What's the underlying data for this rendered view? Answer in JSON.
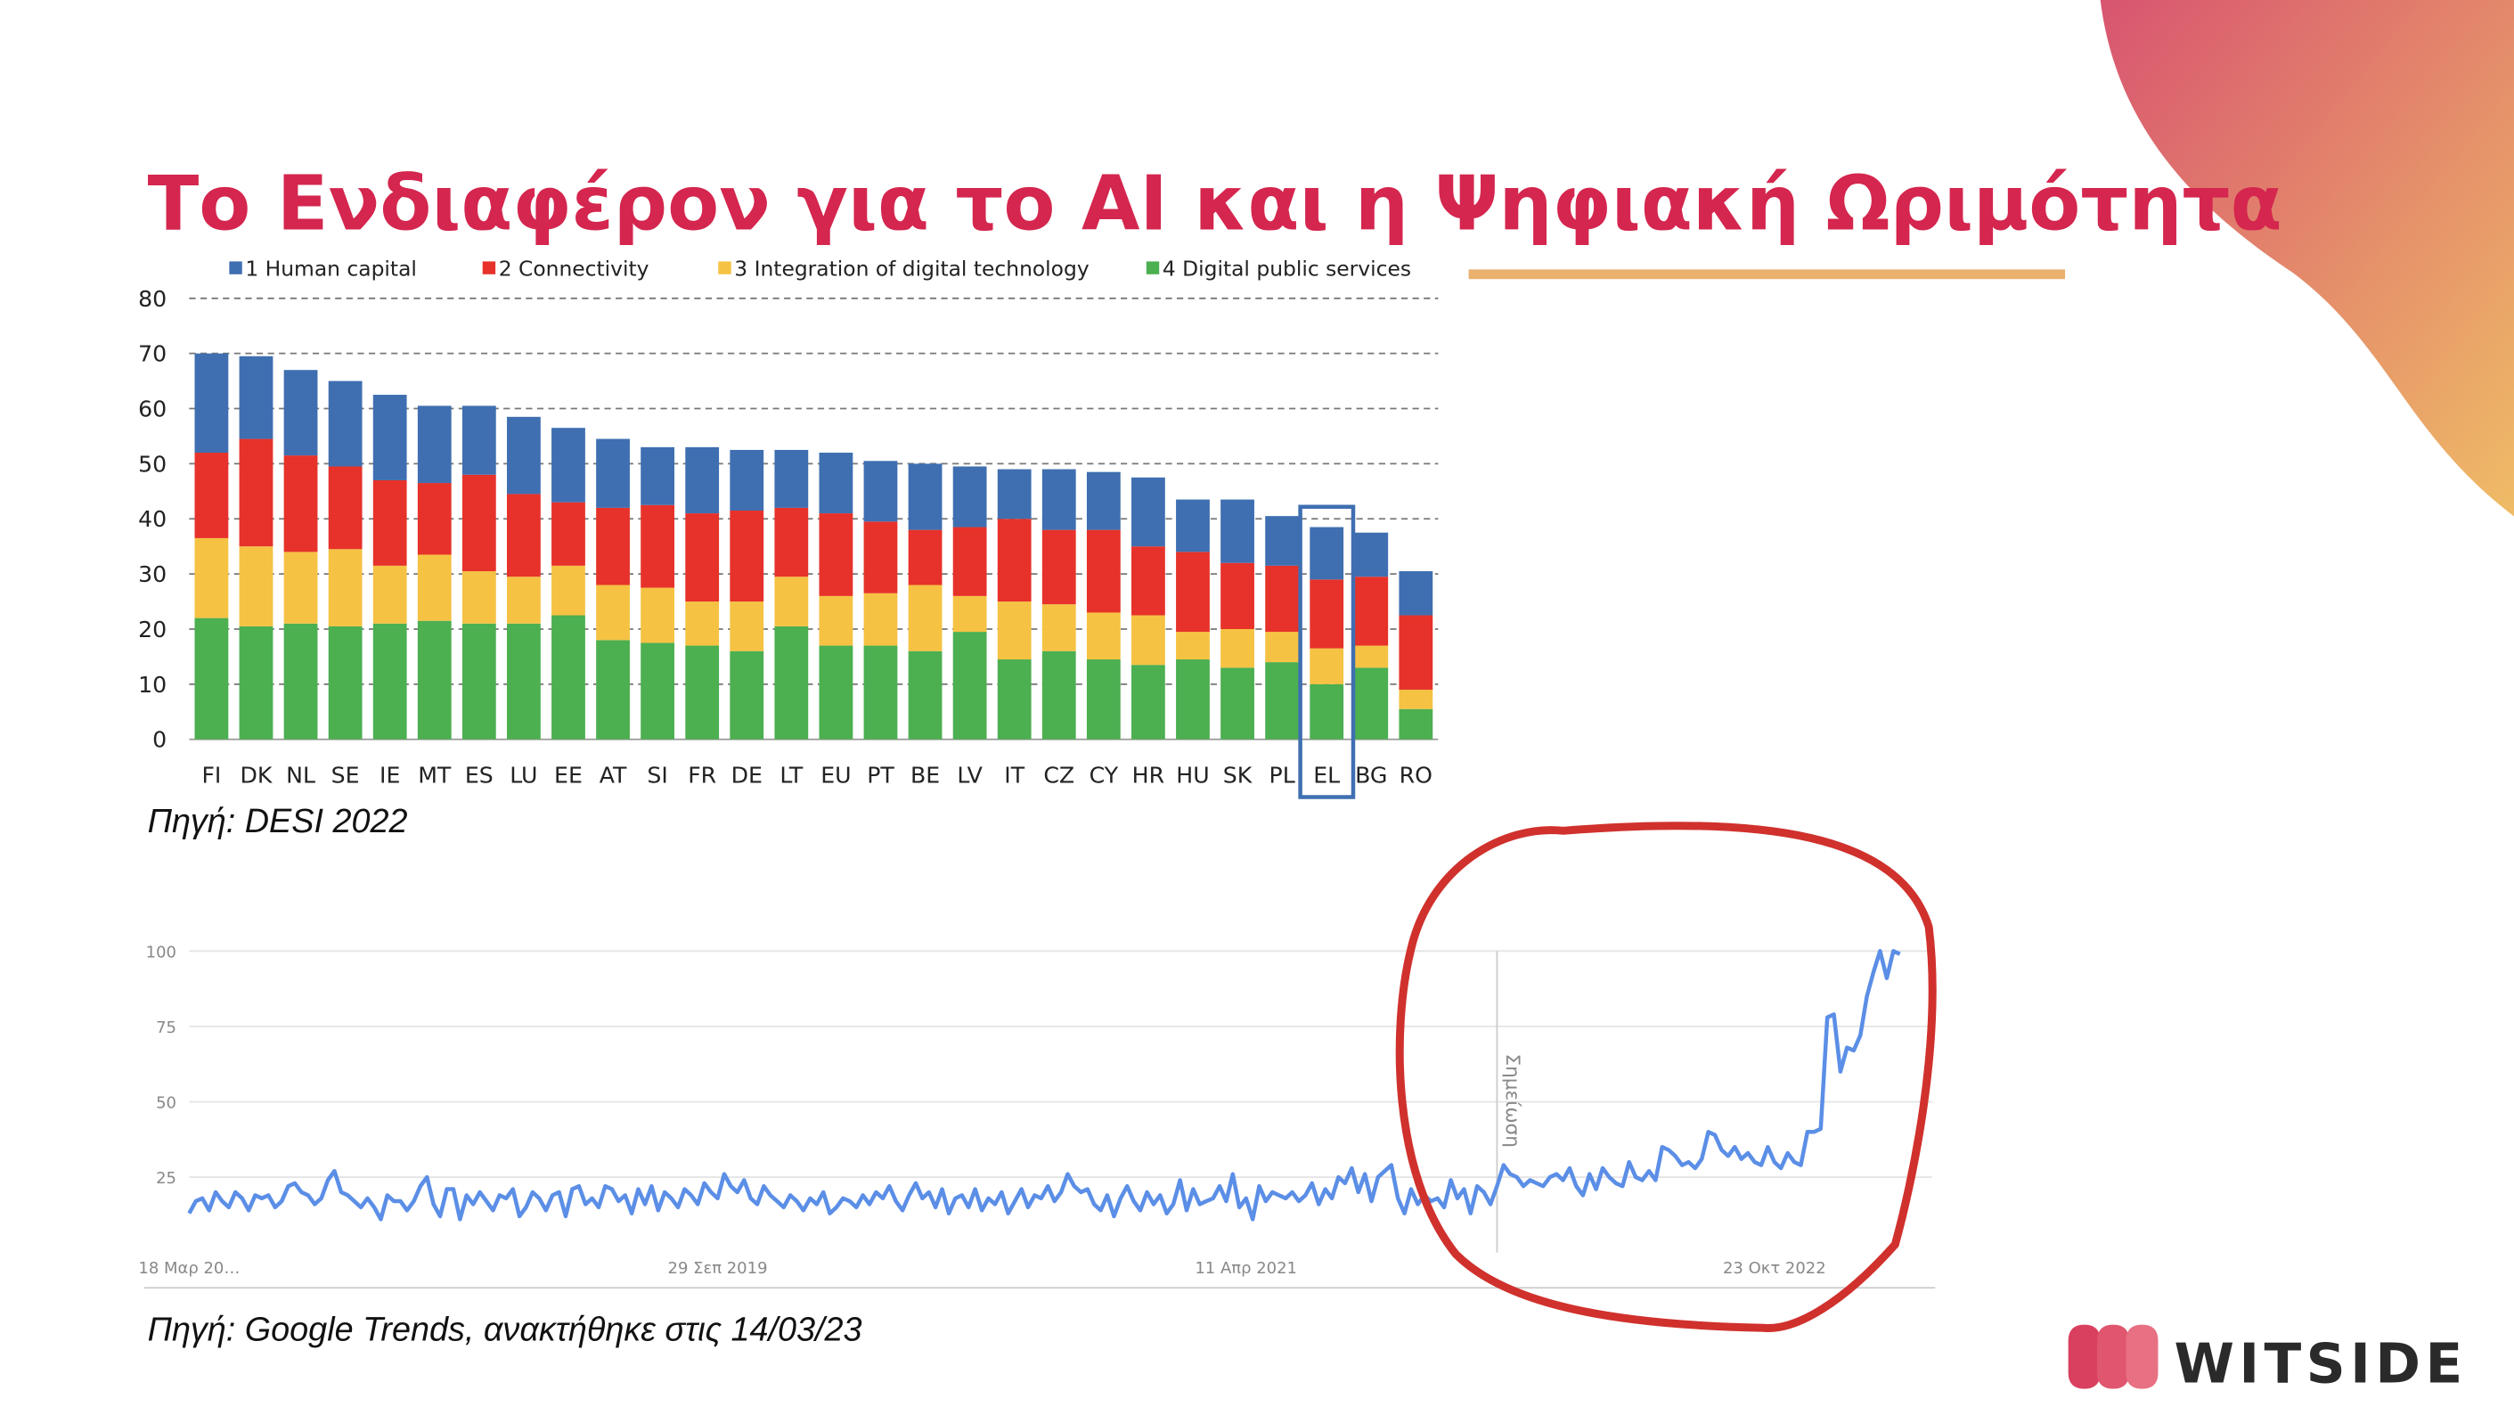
{
  "title": "Το Ενδιαφέρον για το AI και η Ψηφιακή Ωριμότητα",
  "source_desi": "Πηγή: DESI 2022",
  "source_trends": "Πηγή: Google Trends, ανακτήθηκε στις 14/03/23",
  "logo": "WITSIDE",
  "chart_data": [
    {
      "type": "stacked_bar",
      "categories": [
        "FI",
        "DK",
        "NL",
        "SE",
        "IE",
        "MT",
        "ES",
        "LU",
        "EE",
        "AT",
        "SI",
        "FR",
        "DE",
        "LT",
        "EU",
        "PT",
        "BE",
        "LV",
        "IT",
        "CZ",
        "CY",
        "HR",
        "HU",
        "SK",
        "PL",
        "EL",
        "BG",
        "RO"
      ],
      "series": [
        {
          "name": "1 Human capital",
          "color": "#3f6fb1",
          "values": [
            18,
            15,
            15.5,
            15.5,
            15.5,
            14,
            12.5,
            14,
            13.5,
            12.5,
            10.5,
            12,
            11,
            10.5,
            11,
            11,
            12,
            11,
            9,
            11,
            10.5,
            12.5,
            9.5,
            11.5,
            9,
            9.5,
            8,
            8
          ]
        },
        {
          "name": "2 Connectivity",
          "color": "#e6322a",
          "values": [
            15.5,
            19.5,
            17.5,
            15,
            15.5,
            13,
            17.5,
            15,
            11.5,
            14,
            15,
            16,
            16.5,
            12.5,
            15,
            13,
            10,
            12.5,
            15,
            13.5,
            15,
            12.5,
            14.5,
            12,
            12,
            12.5,
            12.5,
            13.5
          ]
        },
        {
          "name": "3 Integration of digital technology",
          "color": "#f6c243",
          "values": [
            14.5,
            14.5,
            13,
            14,
            10.5,
            12,
            9.5,
            8.5,
            9,
            10,
            10,
            8,
            9,
            9,
            9,
            9.5,
            12,
            6.5,
            10.5,
            8.5,
            8.5,
            9,
            5,
            7,
            5.5,
            6.5,
            4,
            3.5
          ]
        },
        {
          "name": "4 Digital public services",
          "color": "#4caf50",
          "values": [
            22,
            20.5,
            21,
            20.5,
            21,
            21.5,
            21,
            21,
            22.5,
            18,
            17.5,
            17,
            16,
            20.5,
            17,
            17,
            16,
            19.5,
            14.5,
            16,
            14.5,
            13.5,
            14.5,
            13,
            14,
            10,
            13,
            5.5
          ]
        }
      ],
      "ylim": [
        0,
        80
      ],
      "yticks": [
        0,
        10,
        20,
        30,
        40,
        50,
        60,
        70,
        80
      ],
      "grid": true
    },
    {
      "type": "line",
      "series": [
        {
          "color": "#5b8ee6",
          "values": [
            13,
            17,
            18,
            14,
            20,
            17,
            15,
            20,
            18,
            14,
            19,
            18,
            19,
            15,
            17,
            22,
            23,
            20,
            19,
            16,
            18,
            24,
            27,
            20,
            19,
            17,
            15,
            18,
            15,
            11,
            19,
            17,
            17,
            14,
            17,
            22,
            25,
            16,
            12,
            21,
            21,
            11,
            19,
            16,
            20,
            17,
            14,
            19,
            18,
            21,
            12,
            15,
            20,
            18,
            14,
            19,
            20,
            12,
            21,
            22,
            16,
            18,
            15,
            22,
            21,
            17,
            19,
            13,
            21,
            16,
            22,
            14,
            20,
            18,
            15,
            21,
            19,
            16,
            23,
            20,
            18,
            26,
            22,
            20,
            24,
            18,
            16,
            22,
            19,
            17,
            15,
            19,
            17,
            14,
            18,
            16,
            20,
            13,
            15,
            18,
            17,
            15,
            19,
            16,
            20,
            18,
            22,
            17,
            14,
            19,
            23,
            18,
            20,
            15,
            21,
            13,
            18,
            19,
            15,
            21,
            14,
            18,
            16,
            20,
            13,
            17,
            21,
            15,
            19,
            18,
            22,
            17,
            20,
            26,
            22,
            20,
            21,
            16,
            14,
            19,
            12,
            18,
            22,
            17,
            14,
            20,
            16,
            19,
            13,
            16,
            24,
            14,
            21,
            16,
            17,
            18,
            22,
            17,
            26,
            15,
            18,
            11,
            22,
            17,
            20,
            19,
            18,
            20,
            17,
            19,
            23,
            16,
            21,
            18,
            25,
            23,
            28,
            20,
            26,
            17,
            25,
            27,
            29,
            18,
            13,
            21,
            16,
            19,
            17,
            18,
            15,
            24,
            18,
            21,
            13,
            22,
            20,
            16,
            22,
            29,
            26,
            25,
            22,
            24,
            23,
            22,
            25,
            26,
            24,
            28,
            22,
            19,
            26,
            21,
            28,
            25,
            23,
            22,
            30,
            25,
            24,
            27,
            24,
            35,
            34,
            32,
            29,
            30,
            28,
            31,
            40,
            39,
            34,
            32,
            35,
            31,
            33,
            30,
            29,
            35,
            30,
            28,
            33,
            30,
            29,
            40,
            40,
            41,
            78,
            79,
            60,
            68,
            67,
            72,
            85,
            93,
            100,
            91,
            100,
            99
          ]
        }
      ],
      "xlim": [
        0,
        259
      ],
      "xticks": [
        {
          "value": 0,
          "label": "18 Μαρ 20…"
        },
        {
          "value": 80,
          "label": "29 Σεπ 2019"
        },
        {
          "value": 160,
          "label": "11 Απρ 2021"
        },
        {
          "value": 240,
          "label": "23 Οκτ 2022"
        }
      ],
      "ylim": [
        0,
        100
      ],
      "yticks": [
        25,
        50,
        75,
        100
      ],
      "grid": true,
      "annotations": [
        {
          "x": 198,
          "label": "Σημείωση"
        }
      ]
    }
  ]
}
